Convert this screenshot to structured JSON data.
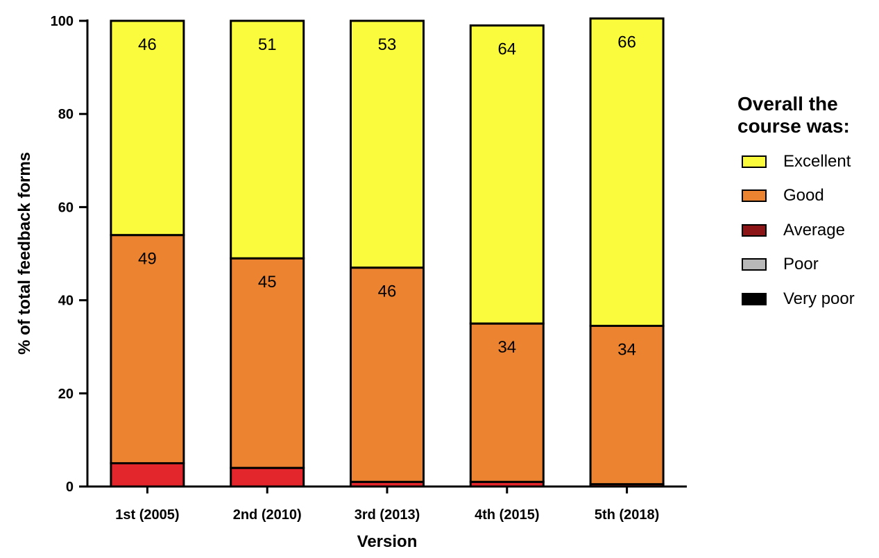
{
  "chart_data": {
    "type": "bar",
    "stacked": true,
    "categories": [
      "1st (2005)",
      "2nd (2010)",
      "3rd (2013)",
      "4th (2015)",
      "5th (2018)"
    ],
    "series": [
      {
        "name": "Very poor",
        "color": "#000000",
        "values": [
          0,
          0,
          0,
          0,
          0
        ]
      },
      {
        "name": "Poor",
        "color": "#b8b8b8",
        "values": [
          0,
          0,
          0,
          0,
          0
        ]
      },
      {
        "name": "Average",
        "color": "#e3262b",
        "values": [
          5,
          4,
          1,
          1,
          0.5
        ]
      },
      {
        "name": "Good",
        "color": "#ec8331",
        "values": [
          49,
          45,
          46,
          34,
          34
        ]
      },
      {
        "name": "Excellent",
        "color": "#fbfb3d",
        "values": [
          46,
          51,
          53,
          64,
          66
        ]
      }
    ],
    "data_labels": {
      "Good": [
        "49",
        "45",
        "46",
        "34",
        "34"
      ],
      "Excellent": [
        "46",
        "51",
        "53",
        "64",
        "66"
      ]
    },
    "title": "",
    "xlabel": "Version",
    "ylabel": "% of total feedback forms",
    "ylim": [
      0,
      100
    ],
    "yticks": [
      "0",
      "20",
      "40",
      "60",
      "80",
      "100"
    ],
    "grid": false,
    "legend": {
      "title_lines": [
        "Overall the",
        "course was:"
      ],
      "placement": "right",
      "items": [
        {
          "label": "Excellent",
          "color": "#fbfb3d"
        },
        {
          "label": "Good",
          "color": "#ec8331"
        },
        {
          "label": "Average",
          "color": "#8b1517"
        },
        {
          "label": "Poor",
          "color": "#b8b8b8"
        },
        {
          "label": "Very poor",
          "color": "#000000"
        }
      ]
    }
  }
}
